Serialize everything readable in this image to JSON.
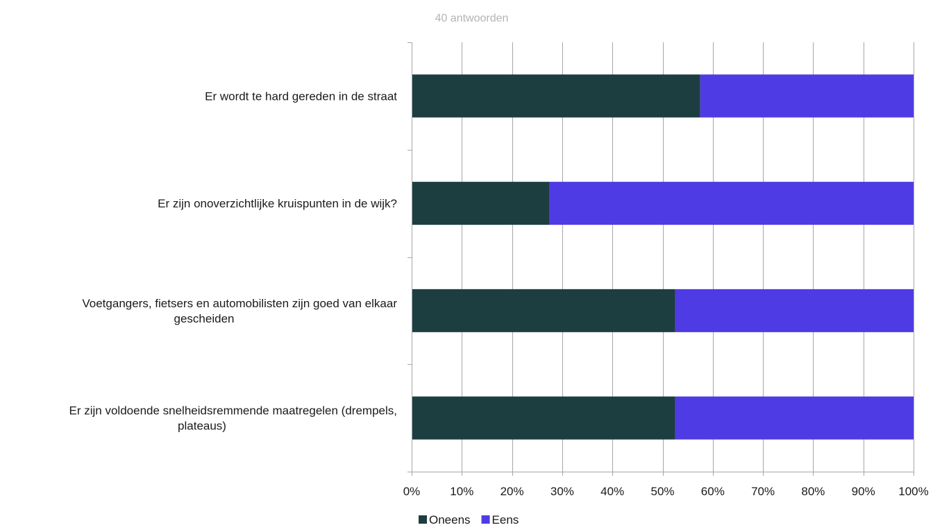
{
  "chart_data": {
    "type": "bar",
    "orientation": "horizontal",
    "stacked": true,
    "percent_stacked": true,
    "subtitle": "40 antwoorden",
    "categories": [
      "Er wordt te hard gereden in de straat",
      "Er zijn onoverzichtlijke kruispunten in de wijk?",
      "Voetgangers, fietsers en automobilisten zijn goed van elkaar gescheiden",
      "Er zijn voldoende snelheidsremmende maatregelen (drempels, plateaus)"
    ],
    "category_label_lines": [
      [
        "Er wordt te hard gereden in de straat"
      ],
      [
        "Er zijn onoverzichtlijke kruispunten in de wijk?"
      ],
      [
        "Voetgangers, fietsers en automobilisten zijn goed van elkaar",
        "gescheiden"
      ],
      [
        "Er zijn voldoende snelheidsremmende maatregelen (drempels,",
        "plateaus)"
      ]
    ],
    "series": [
      {
        "name": "Oneens",
        "color": "#1d3e41",
        "values": [
          57.5,
          27.5,
          52.5,
          52.5
        ]
      },
      {
        "name": "Eens",
        "color": "#4f3be3",
        "values": [
          42.5,
          72.5,
          47.5,
          47.5
        ]
      }
    ],
    "x_ticks": [
      "0%",
      "10%",
      "20%",
      "30%",
      "40%",
      "50%",
      "60%",
      "70%",
      "80%",
      "90%",
      "100%"
    ],
    "xlim": [
      0,
      100
    ],
    "grid": true,
    "legend_position": "bottom"
  }
}
